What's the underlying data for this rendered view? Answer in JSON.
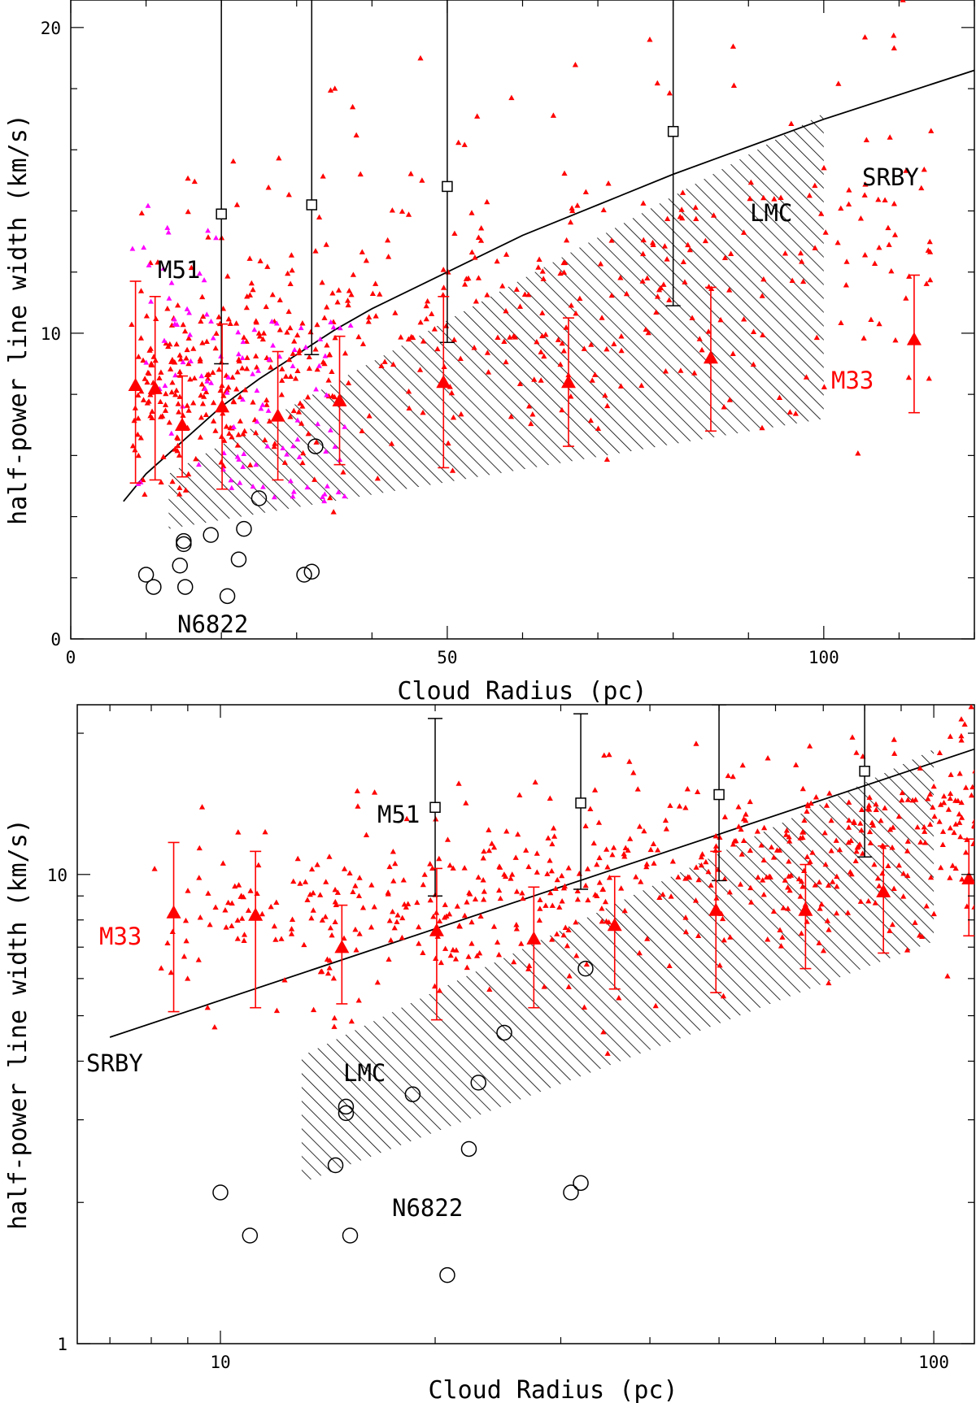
{
  "chart_data": [
    {
      "type": "scatter",
      "xscale": "linear",
      "yscale": "linear",
      "xlim": [
        0,
        120
      ],
      "ylim": [
        0,
        20.9
      ],
      "xticks": [
        0,
        50,
        100
      ],
      "yticks": [
        0,
        10,
        20
      ],
      "xlabel": "Cloud Radius (pc)",
      "ylabel": "half-power line width (km/s)",
      "annotations": {
        "srby": "SRBY",
        "lmc": "LMC",
        "m51": "M51",
        "m33": "M33",
        "n6822": "N6822"
      },
      "colors": {
        "m33": "#ff0000",
        "extra": "#ff00ff",
        "line": "#000000"
      },
      "srby_line": {
        "x": [
          7,
          10,
          15,
          20,
          25,
          30,
          35,
          40,
          50,
          60,
          70,
          80,
          90,
          100,
          110,
          120
        ],
        "y": [
          4.5,
          5.4,
          6.5,
          7.6,
          8.5,
          9.3,
          10.1,
          10.8,
          12.0,
          13.2,
          14.2,
          15.2,
          16.1,
          17.0,
          17.8,
          18.6
        ]
      },
      "lmc_region": {
        "polygon": [
          [
            13,
            3.6
          ],
          [
            100,
            7.2
          ],
          [
            100,
            17.2
          ],
          [
            13,
            5.4
          ]
        ]
      },
      "m51_binned": [
        {
          "x": 20,
          "y": 13.9,
          "lo": 9.0,
          "hi": 21.5
        },
        {
          "x": 32,
          "y": 14.2,
          "lo": 9.3,
          "hi": 22.0
        },
        {
          "x": 50,
          "y": 14.8,
          "lo": 9.7,
          "hi": 23.0
        },
        {
          "x": 80,
          "y": 16.6,
          "lo": 10.9,
          "hi": 25.5
        }
      ],
      "m33_binned": [
        {
          "x": 8.6,
          "y": 8.3,
          "lo": 5.1,
          "hi": 11.7
        },
        {
          "x": 11.2,
          "y": 8.2,
          "lo": 5.2,
          "hi": 11.2
        },
        {
          "x": 14.8,
          "y": 7.0,
          "lo": 5.3,
          "hi": 8.6
        },
        {
          "x": 20.1,
          "y": 7.6,
          "lo": 4.9,
          "hi": 10.3
        },
        {
          "x": 27.5,
          "y": 7.3,
          "lo": 5.2,
          "hi": 9.4
        },
        {
          "x": 35.7,
          "y": 7.8,
          "lo": 5.7,
          "hi": 9.9
        },
        {
          "x": 49.5,
          "y": 8.4,
          "lo": 5.6,
          "hi": 11.2
        },
        {
          "x": 66.1,
          "y": 8.4,
          "lo": 6.3,
          "hi": 10.5
        },
        {
          "x": 85.0,
          "y": 9.2,
          "lo": 6.8,
          "hi": 11.5
        },
        {
          "x": 112.0,
          "y": 9.8,
          "lo": 7.4,
          "hi": 11.9
        }
      ],
      "n6822": {
        "x": [
          10.0,
          11.0,
          14.5,
          15.0,
          15.0,
          15.2,
          18.6,
          20.8,
          22.3,
          23.0,
          25.0,
          31.0,
          32.0,
          32.5
        ],
        "y": [
          2.1,
          1.7,
          2.4,
          3.1,
          3.2,
          1.7,
          3.4,
          1.4,
          2.6,
          3.6,
          4.6,
          2.1,
          2.2,
          6.3
        ]
      },
      "m33_point_seed": 7,
      "m33_point_count": 580,
      "extra_point_count": 110
    },
    {
      "type": "scatter",
      "xscale": "log",
      "yscale": "log",
      "xlim": [
        6.3,
        114
      ],
      "ylim": [
        1,
        23
      ],
      "xticks": [
        10,
        100
      ],
      "yticks": [
        1,
        10
      ],
      "xlabel": "Cloud Radius (pc)",
      "ylabel": "half-power line width (km/s)",
      "annotations": {
        "srby": "SRBY",
        "lmc": "LMC",
        "m51": "M51",
        "m33": "M33",
        "n6822": "N6822"
      },
      "colors": {
        "m33": "#ff0000",
        "line": "#000000"
      },
      "srby_line": {
        "x": [
          7,
          114
        ],
        "y": [
          4.5,
          18.5
        ]
      },
      "lmc_region": {
        "polygon": [
          [
            13,
            2.2
          ],
          [
            100,
            7.2
          ],
          [
            100,
            18.5
          ],
          [
            13,
            4.1
          ]
        ]
      },
      "m51_binned": [
        {
          "x": 20,
          "y": 13.9,
          "lo": 9.0,
          "hi": 21.5
        },
        {
          "x": 32,
          "y": 14.2,
          "lo": 9.3,
          "hi": 22.0
        },
        {
          "x": 50,
          "y": 14.8,
          "lo": 9.7,
          "hi": 23.0
        },
        {
          "x": 80,
          "y": 16.6,
          "lo": 10.9,
          "hi": 25.5
        }
      ],
      "m33_binned": [
        {
          "x": 8.6,
          "y": 8.3,
          "lo": 5.1,
          "hi": 11.7
        },
        {
          "x": 11.2,
          "y": 8.2,
          "lo": 5.2,
          "hi": 11.2
        },
        {
          "x": 14.8,
          "y": 7.0,
          "lo": 5.3,
          "hi": 8.6
        },
        {
          "x": 20.1,
          "y": 7.6,
          "lo": 4.9,
          "hi": 10.3
        },
        {
          "x": 27.5,
          "y": 7.3,
          "lo": 5.2,
          "hi": 9.4
        },
        {
          "x": 35.7,
          "y": 7.8,
          "lo": 5.7,
          "hi": 9.9
        },
        {
          "x": 49.5,
          "y": 8.4,
          "lo": 5.6,
          "hi": 11.2
        },
        {
          "x": 66.1,
          "y": 8.4,
          "lo": 6.3,
          "hi": 10.5
        },
        {
          "x": 85.0,
          "y": 9.2,
          "lo": 6.8,
          "hi": 11.5
        },
        {
          "x": 112.0,
          "y": 9.8,
          "lo": 7.4,
          "hi": 11.9
        }
      ],
      "n6822": {
        "x": [
          10.0,
          11.0,
          14.5,
          15.0,
          15.0,
          15.2,
          18.6,
          20.8,
          22.3,
          23.0,
          25.0,
          31.0,
          32.0,
          32.5
        ],
        "y": [
          2.1,
          1.7,
          2.4,
          3.1,
          3.2,
          1.7,
          3.4,
          1.4,
          2.6,
          3.6,
          4.6,
          2.1,
          2.2,
          6.3
        ]
      },
      "m33_point_seed": 7,
      "m33_point_count": 580,
      "extra_point_count": 0
    }
  ]
}
